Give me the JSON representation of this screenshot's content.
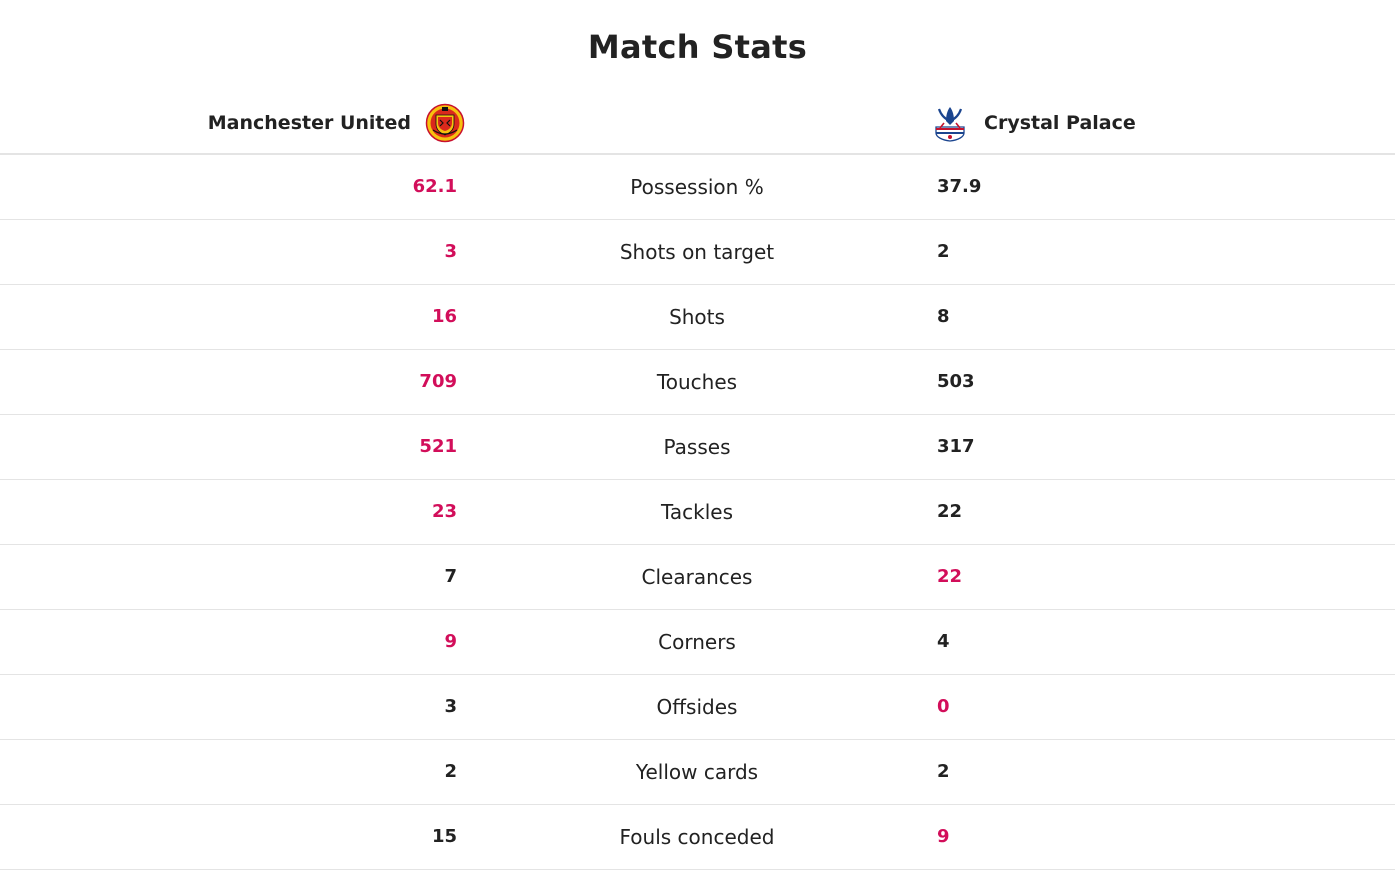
{
  "title": "Match Stats",
  "colors": {
    "leader": "#d20e5a",
    "normal": "#222222",
    "divider": "#e4e4e4"
  },
  "home": {
    "name": "Manchester United",
    "crest_icon": "manchester-united-crest-icon"
  },
  "away": {
    "name": "Crystal Palace",
    "crest_icon": "crystal-palace-crest-icon"
  },
  "stats": [
    {
      "label": "Possession %",
      "home": "62.1",
      "away": "37.9",
      "leader": "home"
    },
    {
      "label": "Shots on target",
      "home": "3",
      "away": "2",
      "leader": "home"
    },
    {
      "label": "Shots",
      "home": "16",
      "away": "8",
      "leader": "home"
    },
    {
      "label": "Touches",
      "home": "709",
      "away": "503",
      "leader": "home"
    },
    {
      "label": "Passes",
      "home": "521",
      "away": "317",
      "leader": "home"
    },
    {
      "label": "Tackles",
      "home": "23",
      "away": "22",
      "leader": "home"
    },
    {
      "label": "Clearances",
      "home": "7",
      "away": "22",
      "leader": "away"
    },
    {
      "label": "Corners",
      "home": "9",
      "away": "4",
      "leader": "home"
    },
    {
      "label": "Offsides",
      "home": "3",
      "away": "0",
      "leader": "away"
    },
    {
      "label": "Yellow cards",
      "home": "2",
      "away": "2",
      "leader": "none"
    },
    {
      "label": "Fouls conceded",
      "home": "15",
      "away": "9",
      "leader": "away"
    }
  ]
}
